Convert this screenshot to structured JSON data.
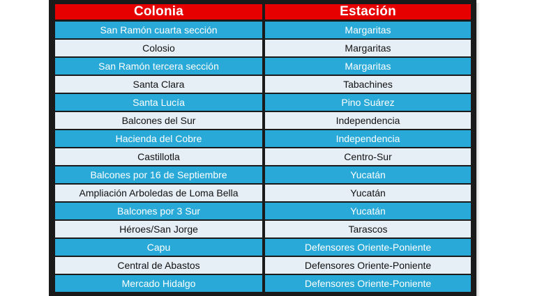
{
  "table": {
    "headers": {
      "colonia": "Colonia",
      "estacion": "Estación"
    },
    "rows": [
      {
        "colonia": "San Ramón cuarta sección",
        "estacion": "Margaritas",
        "style": "blue"
      },
      {
        "colonia": "Colosio",
        "estacion": "Margaritas",
        "style": "light"
      },
      {
        "colonia": "San Ramón tercera sección",
        "estacion": "Margaritas",
        "style": "blue"
      },
      {
        "colonia": "Santa Clara",
        "estacion": "Tabachines",
        "style": "light"
      },
      {
        "colonia": "Santa Lucía",
        "estacion": "Pino Suárez",
        "style": "blue"
      },
      {
        "colonia": "Balcones del Sur",
        "estacion": "Independencia",
        "style": "light"
      },
      {
        "colonia": "Hacienda del Cobre",
        "estacion": "Independencia",
        "style": "blue"
      },
      {
        "colonia": "Castillotla",
        "estacion": "Centro-Sur",
        "style": "light"
      },
      {
        "colonia": "Balcones por 16 de Septiembre",
        "estacion": "Yucatán",
        "style": "blue"
      },
      {
        "colonia": "Ampliación Arboledas de Loma Bella",
        "estacion": "Yucatán",
        "style": "light"
      },
      {
        "colonia": "Balcones por 3 Sur",
        "estacion": "Yucatán",
        "style": "blue"
      },
      {
        "colonia": "Héroes/San Jorge",
        "estacion": "Tarascos",
        "style": "light"
      },
      {
        "colonia": "Capu",
        "estacion": "Defensores Oriente-Poniente",
        "style": "blue"
      },
      {
        "colonia": "Central de Abastos",
        "estacion": "Defensores Oriente-Poniente",
        "style": "light"
      },
      {
        "colonia": "Mercado Hidalgo",
        "estacion": "Defensores Oriente-Poniente",
        "style": "blue"
      }
    ]
  },
  "colors": {
    "header_red": "#e60000",
    "row_blue": "#29a9d8",
    "row_light": "#e6eef6",
    "frame": "#1a1a1a"
  }
}
